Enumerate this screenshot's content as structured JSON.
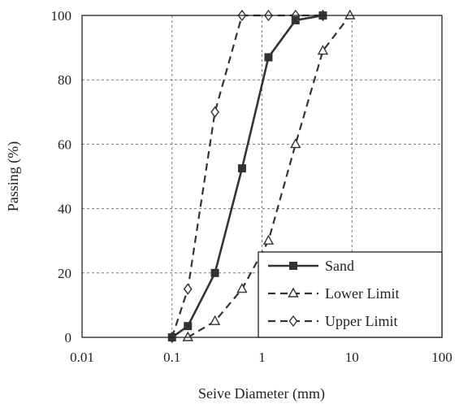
{
  "chart_data": {
    "type": "line",
    "xlabel": "Seive Diameter (mm)",
    "ylabel": "Passing (%)",
    "x_scale": "log",
    "xlim": [
      0.01,
      100
    ],
    "ylim": [
      0,
      100
    ],
    "grid": true,
    "legend_position": "bottom-right",
    "x_ticks": [
      "0.01",
      "0.1",
      "1",
      "10",
      "100"
    ],
    "y_ticks": [
      "0",
      "20",
      "40",
      "60",
      "80",
      "100"
    ],
    "series": [
      {
        "name": "Sand",
        "style": "solid",
        "marker": "square",
        "color": "#333333",
        "points": [
          [
            0.1,
            0
          ],
          [
            0.15,
            3.5
          ],
          [
            0.3,
            20
          ],
          [
            0.6,
            52.5
          ],
          [
            1.18,
            87
          ],
          [
            2.36,
            98.5
          ],
          [
            4.75,
            100
          ]
        ]
      },
      {
        "name": "Lower Limit",
        "style": "dashed",
        "marker": "triangle",
        "color": "#333333",
        "points": [
          [
            0.15,
            0
          ],
          [
            0.3,
            5
          ],
          [
            0.6,
            15
          ],
          [
            1.18,
            30
          ],
          [
            2.36,
            60
          ],
          [
            4.75,
            89
          ],
          [
            9.5,
            100
          ]
        ]
      },
      {
        "name": "Upper Limit",
        "style": "dashed",
        "marker": "diamond",
        "color": "#333333",
        "points": [
          [
            0.1,
            0
          ],
          [
            0.15,
            15
          ],
          [
            0.3,
            70
          ],
          [
            0.6,
            100
          ],
          [
            1.18,
            100
          ],
          [
            2.36,
            100
          ],
          [
            4.75,
            100
          ]
        ]
      }
    ]
  }
}
